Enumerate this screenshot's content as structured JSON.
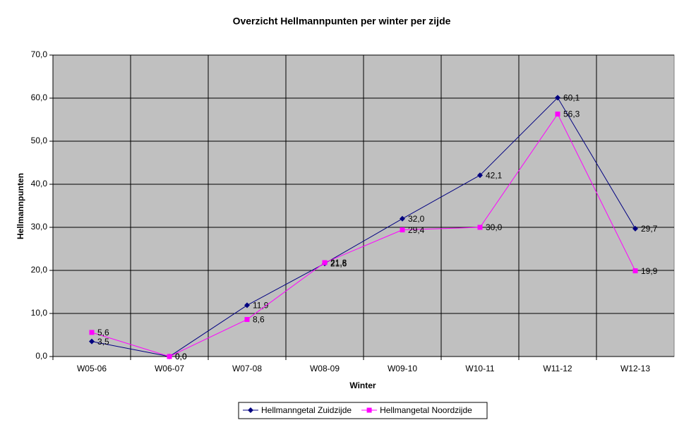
{
  "chart_data": {
    "type": "line",
    "title": "Overzicht Hellmannpunten per winter per zijde",
    "xlabel": "Winter",
    "ylabel": "Hellmannpunten",
    "categories": [
      "W05-06",
      "W06-07",
      "W07-08",
      "W08-09",
      "W09-10",
      "W10-11",
      "W11-12",
      "W12-13"
    ],
    "series": [
      {
        "name": "Hellmanngetal Zuidzijde",
        "color": "#000080",
        "marker": "diamond",
        "values": [
          3.5,
          0.0,
          11.9,
          21.6,
          32.0,
          42.1,
          60.1,
          29.7
        ],
        "value_labels": [
          "3,5",
          "0,0",
          "11,9",
          "21,6",
          "32,0",
          "42,1",
          "60,1",
          "29,7"
        ]
      },
      {
        "name": "Hellmangetal Noordzijde",
        "color": "#ff00ff",
        "marker": "square",
        "values": [
          5.6,
          0.0,
          8.6,
          21.8,
          29.4,
          30.0,
          56.3,
          19.9
        ],
        "value_labels": [
          "5,6",
          "0,0",
          "8,6",
          "21,8",
          "29,4",
          "30,0",
          "56,3",
          "19,9"
        ]
      }
    ],
    "ylim": [
      0,
      70
    ],
    "yticks": [
      {
        "value": 0,
        "label": "0,0"
      },
      {
        "value": 10,
        "label": "10,0"
      },
      {
        "value": 20,
        "label": "20,0"
      },
      {
        "value": 30,
        "label": "30,0"
      },
      {
        "value": 40,
        "label": "40,0"
      },
      {
        "value": 50,
        "label": "50,0"
      },
      {
        "value": 60,
        "label": "60,0"
      },
      {
        "value": 70,
        "label": "70,0"
      }
    ],
    "grid": true,
    "plot_background": "#c0c0c0",
    "legend": "bottom"
  }
}
